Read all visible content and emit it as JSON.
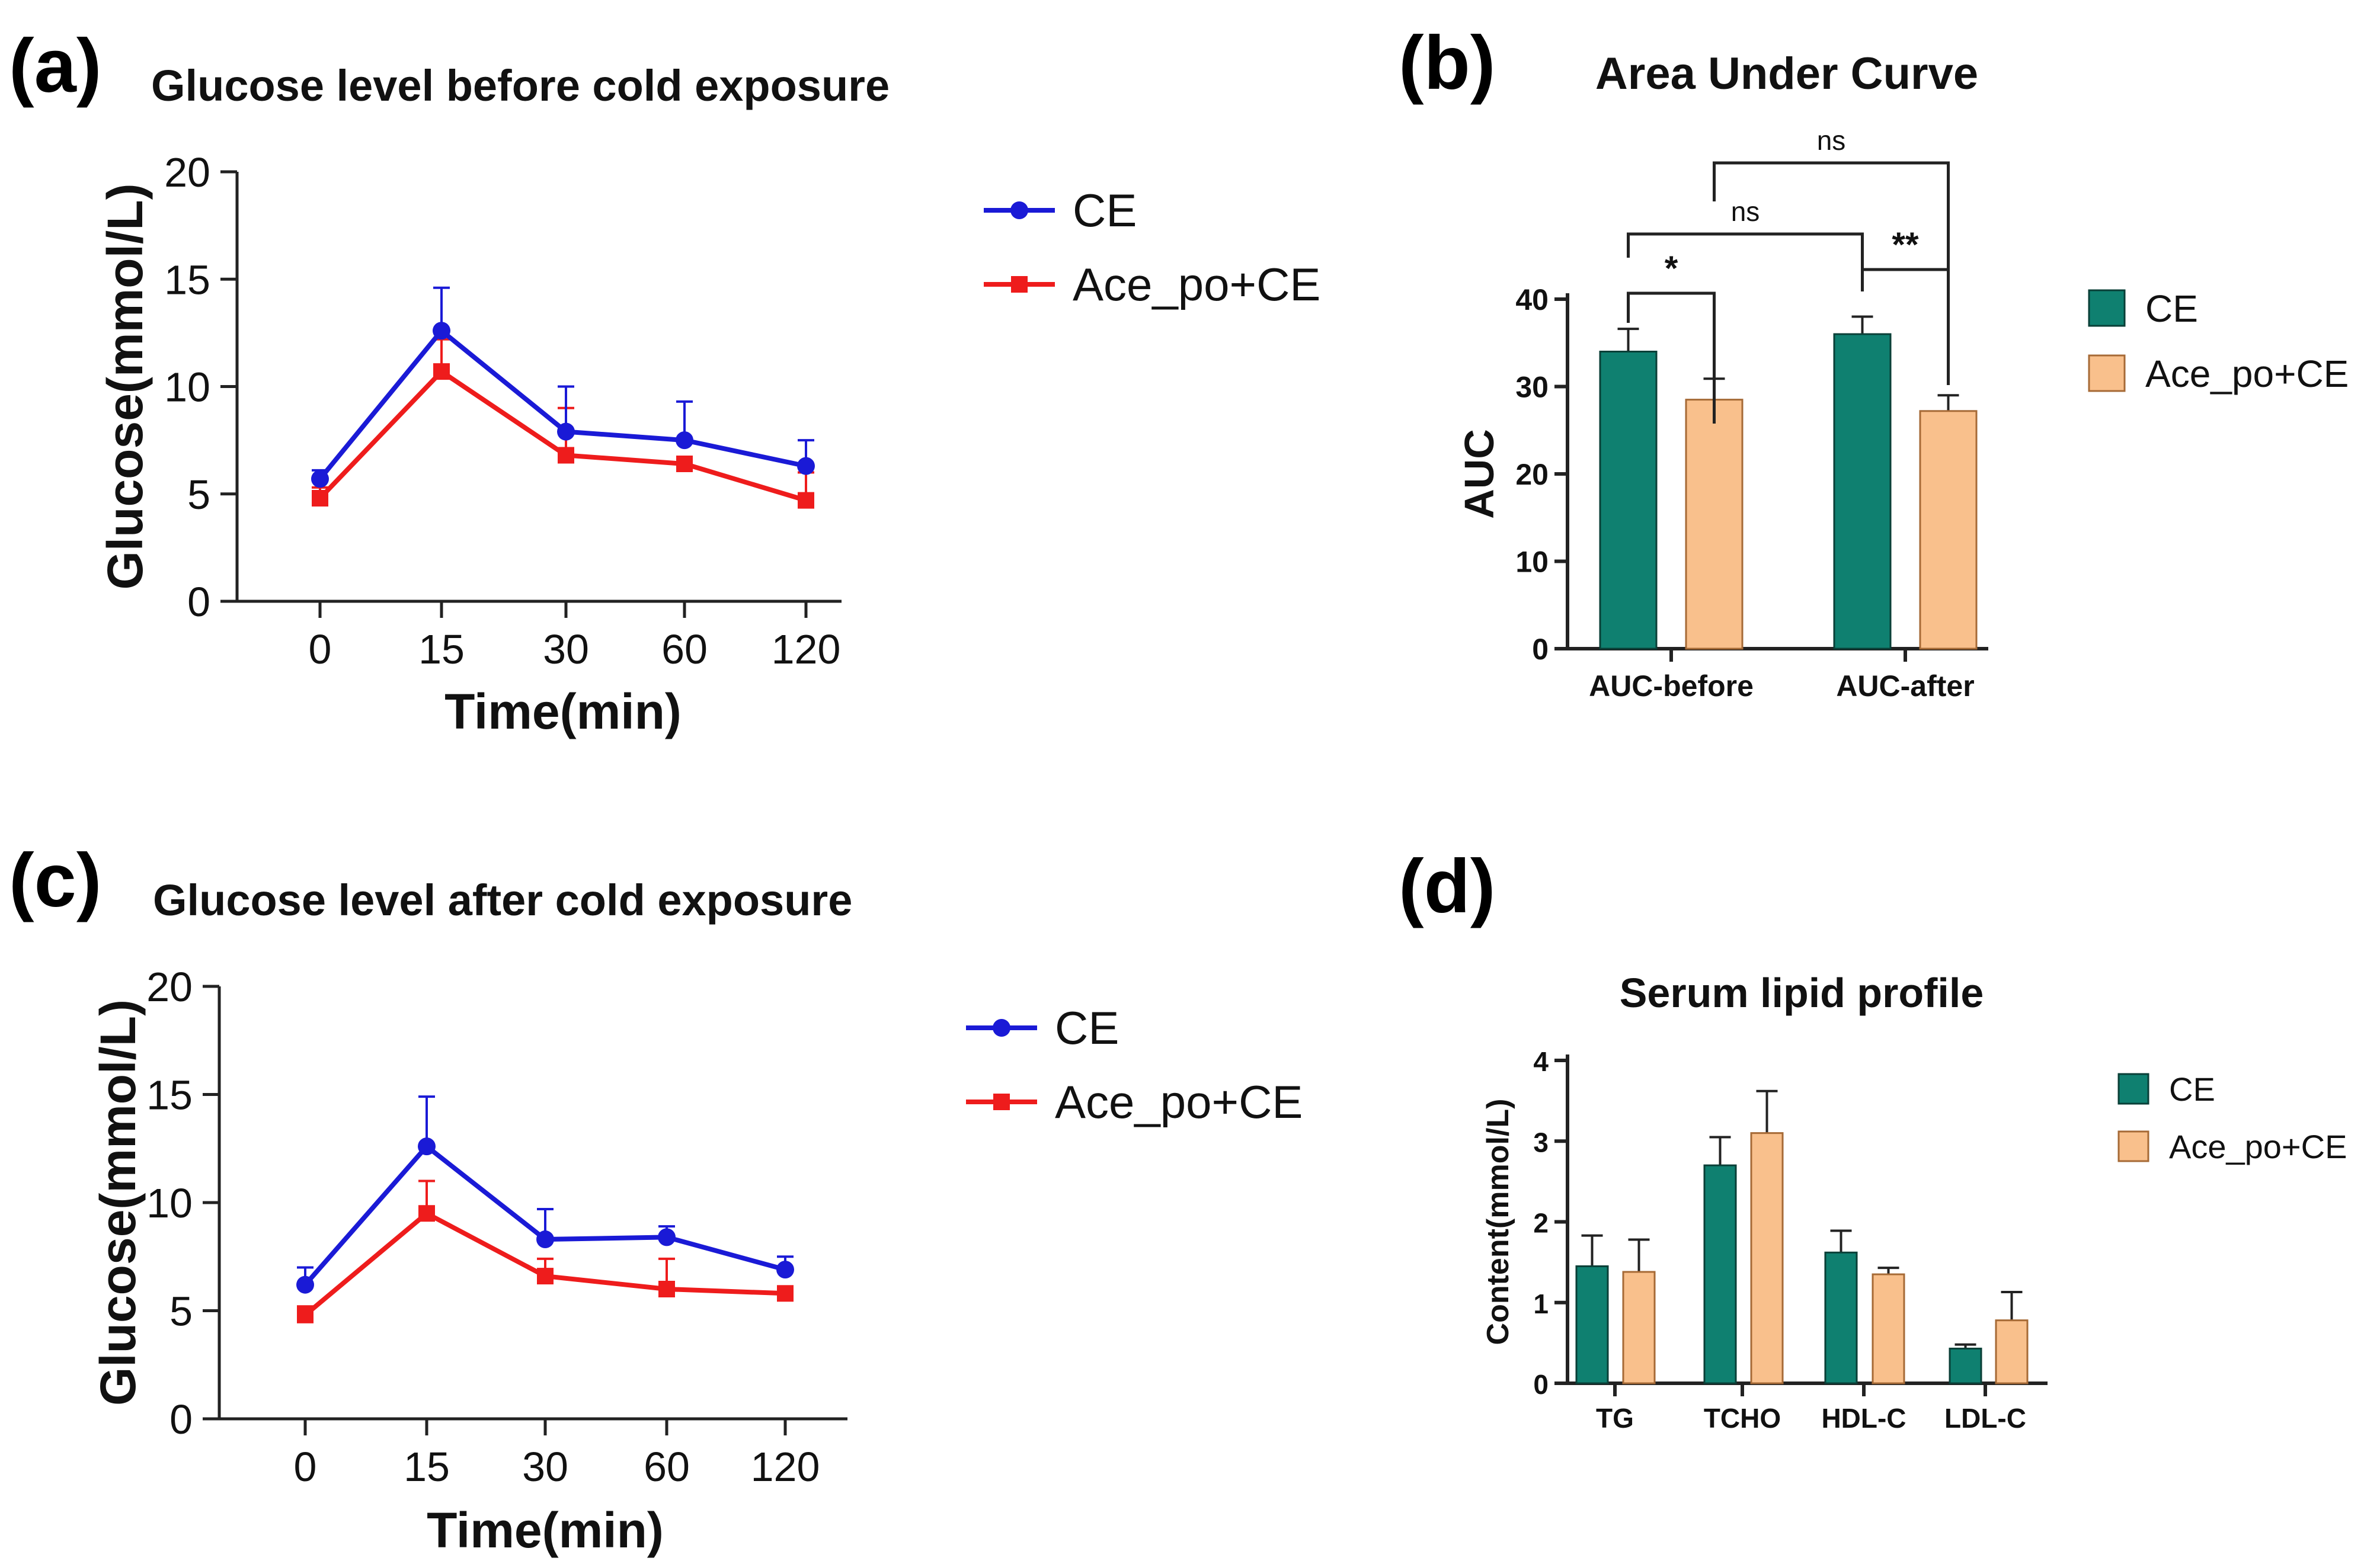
{
  "panel_labels": [
    "(a)",
    "(b)",
    "(c)",
    "(d)"
  ],
  "colors": {
    "ce_line": "#1a1ad6",
    "ace_line": "#ee1c1c",
    "ce_bar": "#0f8070",
    "ace_bar": "#f9c08c"
  },
  "chart_data": [
    {
      "id": "a",
      "type": "line",
      "title": "Glucose level before cold exposure",
      "xlabel": "Time(min)",
      "ylabel": "Glucose(mmol/L)",
      "categories": [
        "0",
        "15",
        "30",
        "60",
        "120"
      ],
      "ylim": [
        0,
        20
      ],
      "yticks": [
        0,
        5,
        10,
        15,
        20
      ],
      "legend_position": "right",
      "series": [
        {
          "name": "CE",
          "marker": "circle",
          "values": [
            5.7,
            12.6,
            7.9,
            7.5,
            6.3
          ],
          "errors": [
            0.4,
            2.0,
            2.1,
            1.8,
            1.2
          ]
        },
        {
          "name": "Ace_po+CE",
          "marker": "square",
          "values": [
            4.8,
            10.7,
            6.8,
            6.4,
            4.7
          ],
          "errors": [
            0.5,
            1.5,
            2.2,
            0.3,
            1.3
          ]
        }
      ]
    },
    {
      "id": "b",
      "type": "bar",
      "title": "Area Under Curve",
      "xlabel": "",
      "ylabel": "AUC",
      "categories": [
        "AUC-before",
        "AUC-after"
      ],
      "ylim": [
        0,
        40
      ],
      "yticks": [
        0,
        10,
        20,
        30,
        40
      ],
      "legend_position": "right",
      "series": [
        {
          "name": "CE",
          "values": [
            34.0,
            36.0
          ],
          "errors": [
            2.6,
            2.0
          ]
        },
        {
          "name": "Ace_po+CE",
          "values": [
            28.5,
            27.2
          ],
          "errors": [
            2.4,
            1.8
          ]
        }
      ],
      "significance": [
        {
          "label": "*",
          "between": [
            "AUC-before CE",
            "AUC-before Ace_po+CE"
          ]
        },
        {
          "label": "**",
          "between": [
            "AUC-after CE",
            "AUC-after Ace_po+CE"
          ]
        },
        {
          "label": "ns",
          "between": [
            "AUC-before CE",
            "AUC-after CE"
          ]
        },
        {
          "label": "ns",
          "between": [
            "AUC-before Ace_po+CE",
            "AUC-after Ace_po+CE"
          ]
        }
      ]
    },
    {
      "id": "c",
      "type": "line",
      "title": "Glucose level after cold exposure",
      "xlabel": "Time(min)",
      "ylabel": "Glucose(mmol/L)",
      "categories": [
        "0",
        "15",
        "30",
        "60",
        "120"
      ],
      "ylim": [
        0,
        20
      ],
      "yticks": [
        0,
        5,
        10,
        15,
        20
      ],
      "legend_position": "right",
      "series": [
        {
          "name": "CE",
          "marker": "circle",
          "values": [
            6.2,
            12.6,
            8.3,
            8.4,
            6.9
          ],
          "errors": [
            0.8,
            2.3,
            1.4,
            0.5,
            0.6
          ]
        },
        {
          "name": "Ace_po+CE",
          "marker": "square",
          "values": [
            4.8,
            9.5,
            6.6,
            6.0,
            5.8
          ],
          "errors": [
            0.4,
            1.5,
            0.8,
            1.4,
            0.2
          ]
        }
      ]
    },
    {
      "id": "d",
      "type": "bar",
      "title": "Serum lipid profile",
      "xlabel": "",
      "ylabel": "Content(mmol/L)",
      "categories": [
        "TG",
        "TCHO",
        "HDL-C",
        "LDL-C"
      ],
      "ylim": [
        0,
        4
      ],
      "yticks": [
        0,
        1,
        2,
        3,
        4
      ],
      "legend_position": "right",
      "series": [
        {
          "name": "CE",
          "values": [
            1.45,
            2.7,
            1.62,
            0.43
          ],
          "errors": [
            0.38,
            0.35,
            0.27,
            0.05
          ]
        },
        {
          "name": "Ace_po+CE",
          "values": [
            1.38,
            3.1,
            1.35,
            0.78
          ],
          "errors": [
            0.4,
            0.52,
            0.08,
            0.35
          ]
        }
      ]
    }
  ]
}
